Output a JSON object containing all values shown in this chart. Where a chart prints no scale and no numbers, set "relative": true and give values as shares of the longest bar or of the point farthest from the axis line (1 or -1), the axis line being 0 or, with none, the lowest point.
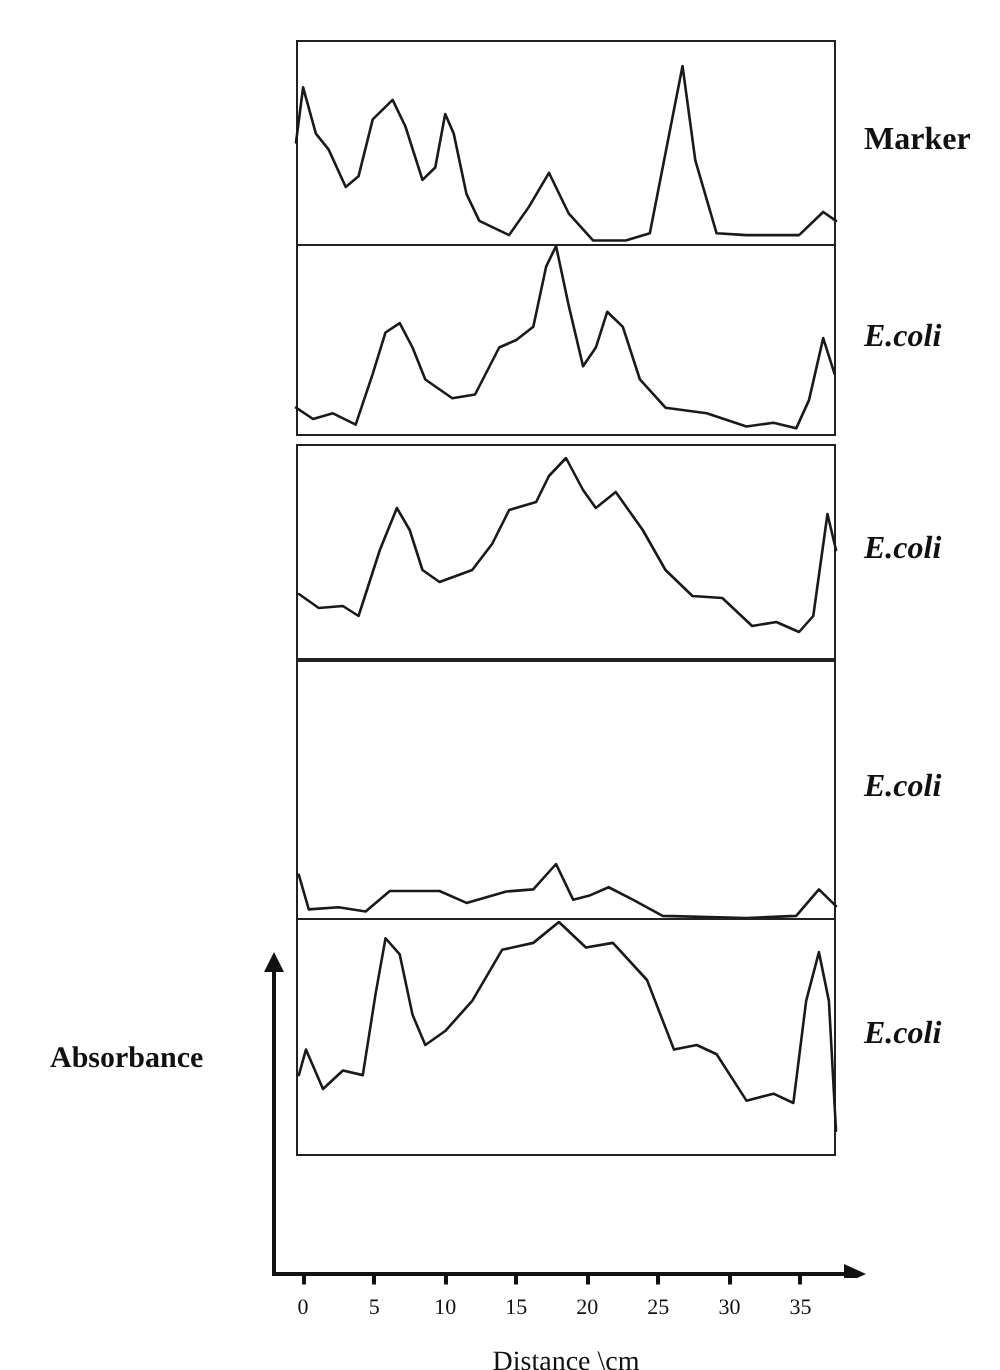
{
  "chart_data": [
    {
      "type": "line",
      "relative": true,
      "marker": "none",
      "xlim": [
        -0.5,
        37.5
      ],
      "tick_labels": false,
      "series": [
        {
          "name": "Marker",
          "color": "#1a1a1a",
          "x": [
            -0.5,
            0.0,
            0.9,
            1.8,
            3.0,
            3.9,
            4.9,
            6.3,
            7.2,
            8.4,
            9.3,
            10.0,
            10.6,
            11.5,
            12.4,
            14.5,
            15.9,
            17.3,
            18.7,
            20.4,
            22.7,
            24.4,
            25.5,
            26.7,
            27.6,
            29.1,
            31.2,
            34.9,
            36.6,
            37.5
          ],
          "values": [
            0.57,
            0.88,
            0.62,
            0.53,
            0.32,
            0.38,
            0.7,
            0.81,
            0.66,
            0.36,
            0.43,
            0.73,
            0.62,
            0.28,
            0.13,
            0.05,
            0.21,
            0.4,
            0.17,
            0.02,
            0.02,
            0.06,
            0.51,
            1.0,
            0.47,
            0.06,
            0.05,
            0.05,
            0.18,
            0.13
          ]
        }
      ]
    },
    {
      "type": "line",
      "relative": true,
      "marker": "none",
      "xlim": [
        -0.5,
        37.5
      ],
      "tick_labels": false,
      "series": [
        {
          "name": "E.coli",
          "color": "#1a1a1a",
          "x": [
            -0.5,
            0.7,
            2.1,
            3.7,
            4.9,
            5.8,
            6.8,
            7.7,
            8.6,
            10.5,
            12.1,
            13.8,
            15.0,
            16.2,
            17.1,
            17.8,
            18.7,
            19.7,
            20.6,
            21.4,
            22.5,
            23.7,
            25.5,
            28.4,
            31.2,
            33.1,
            34.7,
            35.6,
            36.6,
            37.4
          ],
          "values": [
            0.14,
            0.08,
            0.11,
            0.05,
            0.32,
            0.54,
            0.59,
            0.46,
            0.29,
            0.19,
            0.21,
            0.46,
            0.5,
            0.57,
            0.89,
            1.0,
            0.68,
            0.36,
            0.46,
            0.65,
            0.57,
            0.29,
            0.14,
            0.11,
            0.04,
            0.06,
            0.03,
            0.18,
            0.51,
            0.32
          ]
        }
      ]
    },
    {
      "type": "line",
      "relative": true,
      "marker": "none",
      "xlim": [
        -0.5,
        37.5
      ],
      "tick_labels": false,
      "series": [
        {
          "name": "E.coli",
          "color": "#1a1a1a",
          "x": [
            -0.3,
            1.1,
            2.8,
            3.9,
            5.4,
            6.6,
            7.5,
            8.4,
            9.6,
            11.9,
            13.3,
            14.5,
            16.4,
            17.3,
            18.5,
            19.7,
            20.6,
            22.0,
            23.9,
            25.5,
            27.4,
            29.5,
            31.6,
            33.3,
            34.9,
            35.9,
            36.9,
            37.5
          ],
          "values": [
            0.32,
            0.25,
            0.26,
            0.21,
            0.54,
            0.75,
            0.64,
            0.44,
            0.38,
            0.44,
            0.57,
            0.74,
            0.78,
            0.91,
            1.0,
            0.84,
            0.75,
            0.83,
            0.64,
            0.44,
            0.31,
            0.3,
            0.16,
            0.18,
            0.13,
            0.21,
            0.72,
            0.54
          ]
        }
      ]
    },
    {
      "type": "line",
      "relative": true,
      "marker": "none",
      "xlim": [
        -0.5,
        37.5
      ],
      "tick_labels": false,
      "series": [
        {
          "name": "E.coli",
          "color": "#1a1a1a",
          "x": [
            -0.3,
            0.4,
            2.5,
            4.4,
            6.1,
            9.6,
            11.5,
            14.3,
            16.2,
            17.8,
            19.0,
            20.1,
            21.5,
            23.2,
            25.3,
            31.2,
            34.7,
            36.3,
            37.5
          ],
          "values": [
            0.8,
            0.16,
            0.2,
            0.12,
            0.5,
            0.5,
            0.28,
            0.49,
            0.53,
            1.0,
            0.34,
            0.41,
            0.57,
            0.34,
            0.04,
            0,
            0.04,
            0.53,
            0.22
          ]
        }
      ]
    },
    {
      "type": "line",
      "relative": true,
      "marker": "none",
      "xlim": [
        -0.5,
        37.5
      ],
      "xticks": [
        0,
        5,
        10,
        15,
        20,
        25,
        30,
        35
      ],
      "tick_labels": "x",
      "xlabel": "Distance \\cm",
      "ylabel": "Absorbance",
      "series": [
        {
          "name": "E.coli",
          "color": "#1a1a1a",
          "x": [
            -0.3,
            0.2,
            1.4,
            2.8,
            4.2,
            5.1,
            5.8,
            6.8,
            7.7,
            8.6,
            10.0,
            11.9,
            14.0,
            16.2,
            18.0,
            19.9,
            21.8,
            24.2,
            26.1,
            27.7,
            29.1,
            31.2,
            33.1,
            34.5,
            35.4,
            36.3,
            37.0,
            37.5
          ],
          "values": [
            0.34,
            0.45,
            0.28,
            0.36,
            0.34,
            0.69,
            0.93,
            0.86,
            0.6,
            0.47,
            0.53,
            0.66,
            0.88,
            0.91,
            1.0,
            0.89,
            0.91,
            0.75,
            0.45,
            0.47,
            0.43,
            0.23,
            0.26,
            0.22,
            0.66,
            0.87,
            0.66,
            0.1
          ]
        }
      ]
    }
  ]
}
